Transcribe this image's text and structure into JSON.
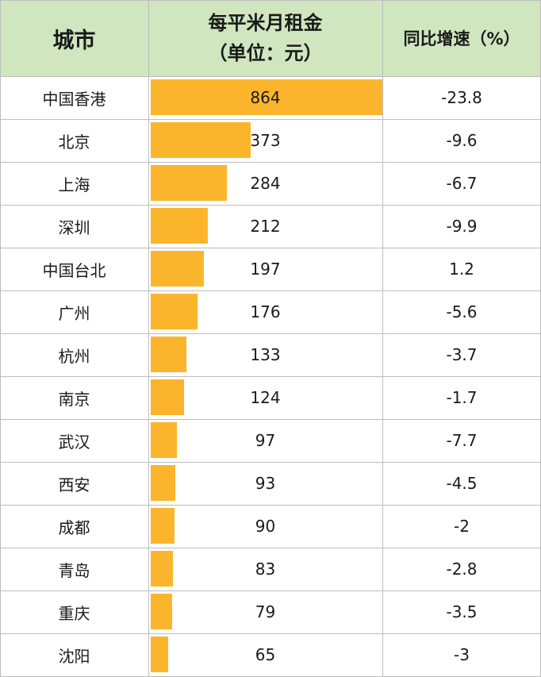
{
  "header": {
    "city": "城市",
    "rent_line1": "每平米月租金",
    "rent_line2": "（单位：元）",
    "growth": "同比增速（%）"
  },
  "chart_data": {
    "type": "table",
    "columns": [
      "城市",
      "每平米月租金（单位：元）",
      "同比增速（%）"
    ],
    "rows": [
      {
        "city": "中国香港",
        "rent": "864",
        "growth": "-23.8"
      },
      {
        "city": "北京",
        "rent": "373",
        "growth": "-9.6"
      },
      {
        "city": "上海",
        "rent": "284",
        "growth": "-6.7"
      },
      {
        "city": "深圳",
        "rent": "212",
        "growth": "-9.9"
      },
      {
        "city": "中国台北",
        "rent": "197",
        "growth": "1.2"
      },
      {
        "city": "广州",
        "rent": "176",
        "growth": "-5.6"
      },
      {
        "city": "杭州",
        "rent": "133",
        "growth": "-3.7"
      },
      {
        "city": "南京",
        "rent": "124",
        "growth": "-1.7"
      },
      {
        "city": "武汉",
        "rent": "97",
        "growth": "-7.7"
      },
      {
        "city": "西安",
        "rent": "93",
        "growth": "-4.5"
      },
      {
        "city": "成都",
        "rent": "90",
        "growth": "-2"
      },
      {
        "city": "青岛",
        "rent": "83",
        "growth": "-2.8"
      },
      {
        "city": "重庆",
        "rent": "79",
        "growth": "-3.5"
      },
      {
        "city": "沈阳",
        "rent": "65",
        "growth": "-3"
      }
    ],
    "bar_color": "#fbb52c",
    "header_color": "#cfe6bf"
  }
}
